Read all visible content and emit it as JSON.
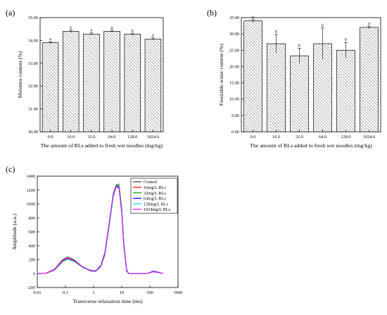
{
  "figure": {
    "panel_labels": [
      "(a)",
      "(b)",
      "(c)"
    ]
  },
  "chart_data": [
    {
      "panel": "(a)",
      "type": "bar",
      "title": "",
      "xlabel": "The amount of RLs added to fresh wet noodles (mg/kg)",
      "ylabel": "Moisture content (%)",
      "categories": [
        "0.0",
        "16.0",
        "32.0",
        "64.0",
        "128.0",
        "1024.0"
      ],
      "values": [
        33.9,
        34.4,
        34.28,
        34.4,
        34.27,
        34.06
      ],
      "errors": [
        0.05,
        0.06,
        0.05,
        0.05,
        0.05,
        0.06
      ],
      "significance": [
        "a",
        "a",
        "a",
        "a",
        "a",
        "a"
      ],
      "ylim": [
        30.0,
        35.0
      ],
      "yticks": [
        "30.00",
        "31.00",
        "32.00",
        "33.00",
        "34.00",
        "35.00"
      ],
      "bar_fill": "hatched",
      "grid": false
    },
    {
      "panel": "(b)",
      "type": "bar",
      "title": "",
      "xlabel": "The amount of RLs added to fresh wet noodles (mg/kg)",
      "ylabel": "Freezable water content (%)",
      "categories": [
        "0.0",
        "16.0",
        "32.0",
        "64.0",
        "128.0",
        "1024.0"
      ],
      "values": [
        34.0,
        27.0,
        23.3,
        27.0,
        25.0,
        32.0
      ],
      "errors": [
        0.4,
        2.8,
        2.3,
        4.8,
        2.4,
        0.4
      ],
      "significance": [
        "a",
        "b",
        "b",
        "b",
        "b",
        "a"
      ],
      "ylim": [
        0.0,
        35.0
      ],
      "yticks": [
        "0.00",
        "5.00",
        "10.00",
        "15.00",
        "20.00",
        "25.00",
        "30.00",
        "35.00"
      ],
      "bar_fill": "hatched",
      "grid": false
    },
    {
      "panel": "(c)",
      "type": "line",
      "title": "",
      "xlabel": "Transverse relaxation time (ms)",
      "ylabel": "Amplitude (a.u.)",
      "xscale": "log",
      "xlim": [
        0.01,
        1000
      ],
      "xticks": [
        "0.01",
        "0.1",
        "1",
        "10",
        "100",
        "1000"
      ],
      "ylim": [
        -200,
        1400
      ],
      "yticks": [
        "-200",
        "0",
        "200",
        "400",
        "600",
        "800",
        "1000",
        "1200",
        "1400"
      ],
      "legend_position": "top-right",
      "grid": false,
      "series": [
        {
          "name": "Control",
          "color": "#3a3a3a",
          "points": [
            [
              0.01,
              0
            ],
            [
              0.02,
              5
            ],
            [
              0.04,
              60
            ],
            [
              0.08,
              200
            ],
            [
              0.12,
              240
            ],
            [
              0.2,
              200
            ],
            [
              0.4,
              100
            ],
            [
              0.8,
              40
            ],
            [
              1.2,
              40
            ],
            [
              1.8,
              120
            ],
            [
              2.5,
              300
            ],
            [
              3.5,
              700
            ],
            [
              5,
              1150
            ],
            [
              6.5,
              1280
            ],
            [
              8,
              1250
            ],
            [
              10,
              900
            ],
            [
              12,
              400
            ],
            [
              15,
              50
            ],
            [
              18,
              0
            ],
            [
              30,
              0
            ],
            [
              80,
              0
            ],
            [
              130,
              30
            ],
            [
              200,
              20
            ],
            [
              300,
              0
            ]
          ]
        },
        {
          "name": "16mg/L RLs",
          "color": "#ff0000",
          "points": [
            [
              0.01,
              0
            ],
            [
              0.02,
              5
            ],
            [
              0.04,
              55
            ],
            [
              0.08,
              190
            ],
            [
              0.12,
              225
            ],
            [
              0.2,
              190
            ],
            [
              0.4,
              95
            ],
            [
              0.8,
              35
            ],
            [
              1.2,
              35
            ],
            [
              1.8,
              110
            ],
            [
              2.5,
              280
            ],
            [
              3.5,
              680
            ],
            [
              5,
              1130
            ],
            [
              6.5,
              1265
            ],
            [
              8,
              1240
            ],
            [
              10,
              880
            ],
            [
              12,
              380
            ],
            [
              15,
              40
            ],
            [
              18,
              0
            ],
            [
              30,
              0
            ],
            [
              80,
              0
            ],
            [
              130,
              25
            ],
            [
              200,
              15
            ],
            [
              300,
              0
            ]
          ]
        },
        {
          "name": "32mg/L RLs",
          "color": "#00aa00",
          "points": [
            [
              0.01,
              0
            ],
            [
              0.02,
              3
            ],
            [
              0.04,
              45
            ],
            [
              0.08,
              170
            ],
            [
              0.12,
              205
            ],
            [
              0.2,
              175
            ],
            [
              0.4,
              90
            ],
            [
              0.8,
              35
            ],
            [
              1.2,
              30
            ],
            [
              1.8,
              100
            ],
            [
              2.5,
              260
            ],
            [
              3.5,
              650
            ],
            [
              5,
              1100
            ],
            [
              6.5,
              1260
            ],
            [
              8,
              1290
            ],
            [
              10,
              950
            ],
            [
              12,
              430
            ],
            [
              15,
              60
            ],
            [
              18,
              0
            ],
            [
              30,
              0
            ],
            [
              80,
              0
            ],
            [
              130,
              25
            ],
            [
              200,
              15
            ],
            [
              300,
              0
            ]
          ]
        },
        {
          "name": "64mg/L RLs",
          "color": "#0000ff",
          "points": [
            [
              0.01,
              0
            ],
            [
              0.02,
              4
            ],
            [
              0.04,
              50
            ],
            [
              0.08,
              180
            ],
            [
              0.12,
              215
            ],
            [
              0.2,
              185
            ],
            [
              0.4,
              95
            ],
            [
              0.8,
              45
            ],
            [
              1.2,
              40
            ],
            [
              1.8,
              115
            ],
            [
              2.5,
              290
            ],
            [
              3.5,
              690
            ],
            [
              5,
              1140
            ],
            [
              6.5,
              1250
            ],
            [
              8,
              1230
            ],
            [
              10,
              870
            ],
            [
              12,
              370
            ],
            [
              15,
              35
            ],
            [
              18,
              0
            ],
            [
              30,
              0
            ],
            [
              80,
              0
            ],
            [
              130,
              35
            ],
            [
              200,
              20
            ],
            [
              300,
              0
            ]
          ]
        },
        {
          "name": "128mg/L RLs",
          "color": "#00dddd",
          "points": [
            [
              0.01,
              0
            ],
            [
              0.02,
              3
            ],
            [
              0.04,
              45
            ],
            [
              0.08,
              175
            ],
            [
              0.12,
              210
            ],
            [
              0.2,
              180
            ],
            [
              0.4,
              92
            ],
            [
              0.8,
              38
            ],
            [
              1.2,
              35
            ],
            [
              1.8,
              105
            ],
            [
              2.5,
              270
            ],
            [
              3.5,
              660
            ],
            [
              5,
              1120
            ],
            [
              6.5,
              1250
            ],
            [
              8,
              1270
            ],
            [
              10,
              930
            ],
            [
              12,
              420
            ],
            [
              15,
              55
            ],
            [
              18,
              0
            ],
            [
              30,
              0
            ],
            [
              80,
              0
            ],
            [
              130,
              25
            ],
            [
              200,
              15
            ],
            [
              300,
              0
            ]
          ]
        },
        {
          "name": "1024mg/L RLs",
          "color": "#ff00ff",
          "points": [
            [
              0.01,
              0
            ],
            [
              0.02,
              4
            ],
            [
              0.04,
              52
            ],
            [
              0.08,
              185
            ],
            [
              0.12,
              220
            ],
            [
              0.2,
              188
            ],
            [
              0.4,
              96
            ],
            [
              0.8,
              40
            ],
            [
              1.2,
              38
            ],
            [
              1.8,
              112
            ],
            [
              2.5,
              285
            ],
            [
              3.5,
              685
            ],
            [
              5,
              1135
            ],
            [
              6.5,
              1260
            ],
            [
              8,
              1245
            ],
            [
              10,
              890
            ],
            [
              12,
              390
            ],
            [
              15,
              45
            ],
            [
              18,
              0
            ],
            [
              30,
              0
            ],
            [
              80,
              0
            ],
            [
              130,
              28
            ],
            [
              200,
              18
            ],
            [
              300,
              0
            ]
          ]
        }
      ]
    }
  ]
}
